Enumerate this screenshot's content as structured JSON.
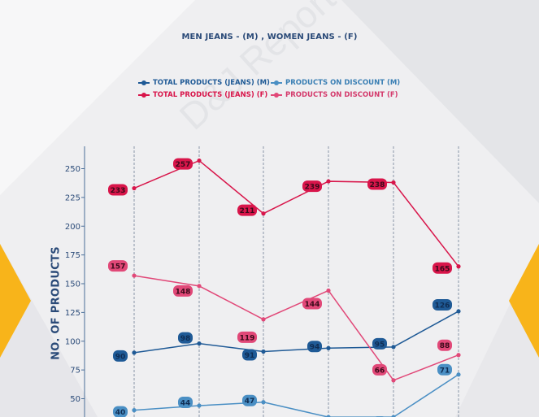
{
  "title": "MEN JEANS - (M) , WOMEN JEANS - (F)",
  "watermark": "D&J Reports",
  "colors": {
    "men_total": "#1f5a96",
    "men_discount": "#4a8fc4",
    "women_total": "#d8154a",
    "women_discount": "#e14878",
    "text": "#2a4a78",
    "accent": "#f8b41a"
  },
  "chart_data": {
    "type": "line",
    "title": "MEN JEANS - (M) , WOMEN JEANS - (F)",
    "ylabel": "NO. OF PRODUCTS",
    "xlabel": "",
    "yticks": [
      50,
      75,
      100,
      125,
      150,
      175,
      200,
      225,
      250
    ],
    "ylim": [
      30,
      268
    ],
    "grid": "vertical dashed",
    "legend_placement": "top",
    "series": [
      {
        "name": "TOTAL PRODUCTS (JEANS) (M)",
        "color": "#1f5a96",
        "values": [
          90,
          98,
          91,
          94,
          95,
          126
        ]
      },
      {
        "name": "PRODUCTS ON DISCOUNT (M)",
        "color": "#4a8fc4",
        "values": [
          40,
          44,
          47,
          34,
          34,
          71
        ]
      },
      {
        "name": "TOTAL PRODUCTS (JEANS) (F)",
        "color": "#d8154a",
        "values": [
          233,
          257,
          211,
          239,
          238,
          165
        ]
      },
      {
        "name": "PRODUCTS ON DISCOUNT (F)",
        "color": "#e14878",
        "values": [
          157,
          148,
          119,
          144,
          66,
          88
        ]
      }
    ]
  }
}
